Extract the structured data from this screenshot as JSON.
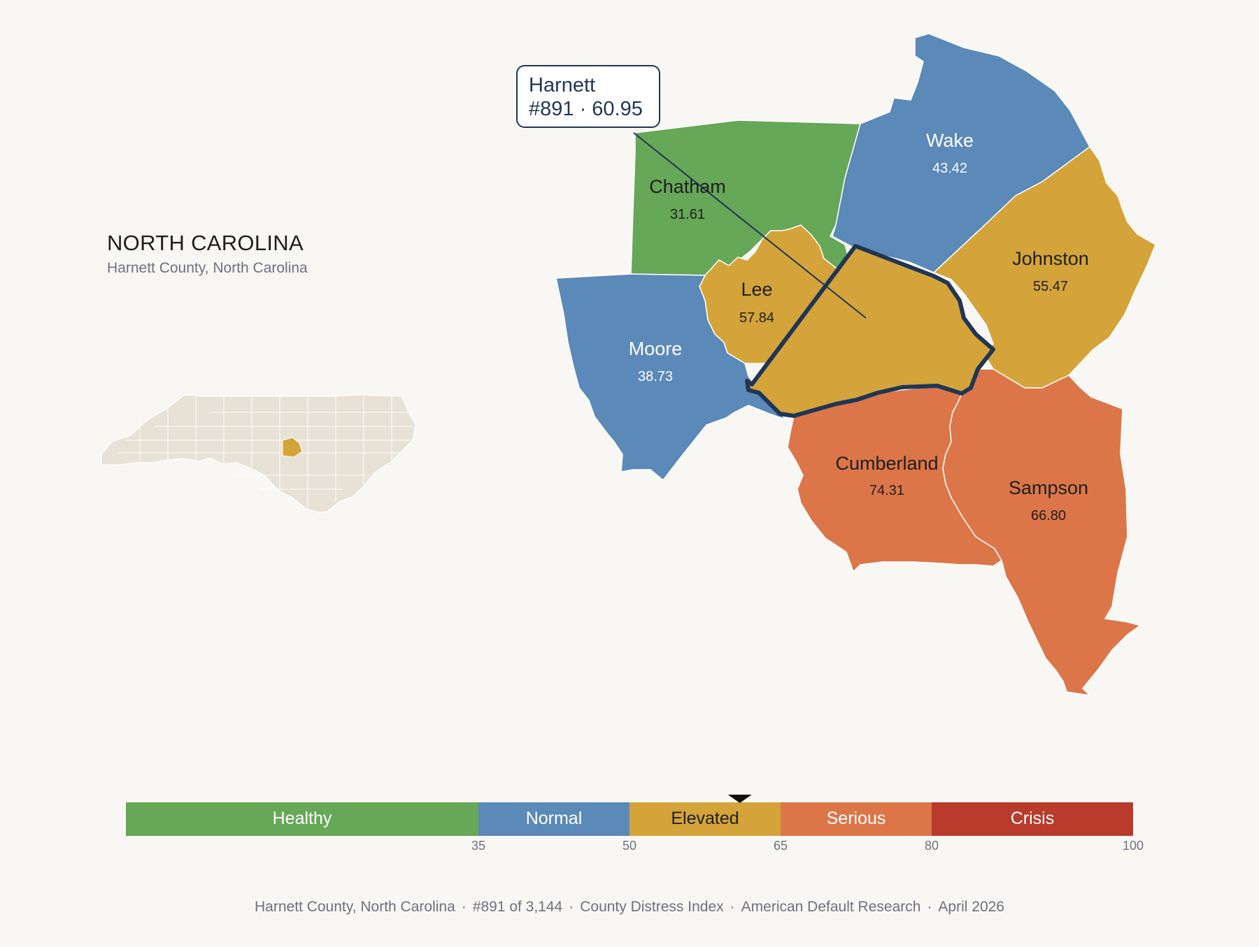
{
  "region": {
    "title": "NORTH CAROLINA",
    "subtitle": "Harnett County, North Carolina"
  },
  "callout": {
    "name": "Harnett",
    "detail": "#891 · 60.95"
  },
  "counties": [
    {
      "name": "Chatham",
      "value": "31.61",
      "color": "#66a758",
      "text_color": "#1e1e1e"
    },
    {
      "name": "Wake",
      "value": "43.42",
      "color": "#5b89b8",
      "text_color": "#ffffff"
    },
    {
      "name": "Johnston",
      "value": "55.47",
      "color": "#d4a43a",
      "text_color": "#1e1e1e"
    },
    {
      "name": "Lee",
      "value": "57.84",
      "color": "#d4a43a",
      "text_color": "#1e1e1e"
    },
    {
      "name": "Moore",
      "value": "38.73",
      "color": "#5b89b8",
      "text_color": "#ffffff"
    },
    {
      "name": "Cumberland",
      "value": "74.31",
      "color": "#dc7649",
      "text_color": "#1e1e1e"
    },
    {
      "name": "Sampson",
      "value": "66.80",
      "color": "#dc7649",
      "text_color": "#1e1e1e"
    },
    {
      "name": "Harnett",
      "value": "60.95",
      "color": "#d4a43a",
      "highlighted": true
    }
  ],
  "legend": {
    "min": 0,
    "max": 100,
    "marker_value": 60.95,
    "bands": [
      {
        "label": "Healthy",
        "from": 0,
        "to": 35,
        "color": "#66a758",
        "text_color": "#ffffff"
      },
      {
        "label": "Normal",
        "from": 35,
        "to": 50,
        "color": "#5b89b8",
        "text_color": "#ffffff"
      },
      {
        "label": "Elevated",
        "from": 50,
        "to": 65,
        "color": "#d4a43a",
        "text_color": "#1e1e1e"
      },
      {
        "label": "Serious",
        "from": 65,
        "to": 80,
        "color": "#dc7649",
        "text_color": "#ffffff"
      },
      {
        "label": "Crisis",
        "from": 80,
        "to": 100,
        "color": "#b83b2b",
        "text_color": "#ffffff"
      }
    ],
    "ticks": [
      "35",
      "50",
      "65",
      "80",
      "100"
    ]
  },
  "footer": {
    "items": [
      "Harnett County, North Carolina",
      "#891 of 3,144",
      "County Distress Index",
      "American Default Research",
      "April 2026"
    ],
    "separator": "·"
  },
  "colors": {
    "highlight_outline": "#1f3656",
    "inset_fill": "#e8e2d6",
    "inset_highlight": "#d4a43a",
    "background": "#f9f7f3"
  }
}
